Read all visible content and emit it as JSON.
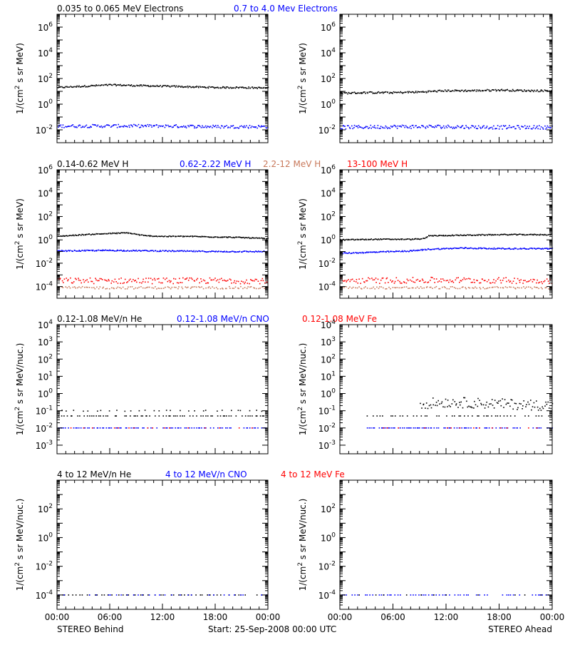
{
  "footer": {
    "left": "STEREO Behind",
    "center": "Start: 25-Sep-2008 00:00 UTC",
    "right": "STEREO Ahead"
  },
  "time_ticks": [
    "00:00",
    "06:00",
    "12:00",
    "18:00",
    "00:00"
  ],
  "chart_data": [
    {
      "type": "scatter",
      "row": "electrons",
      "legend": [
        {
          "label": "0.035 to 0.065 MeV Electrons",
          "color": "#000000"
        },
        {
          "label": "0.7 to 4.0 Mev Electrons",
          "color": "#0000ff"
        }
      ],
      "ylabel_base": "1/(cm",
      "ylabel_sup": "2",
      "ylabel_rest": " s sr MeV)",
      "y_log": true,
      "ylim_exp": [
        -3,
        7
      ],
      "y_ticks": [
        {
          "exp": -2,
          "base": "10",
          "sup": "-2"
        },
        {
          "exp": 0,
          "base": "10",
          "sup": "0"
        },
        {
          "exp": 2,
          "base": "10",
          "sup": "2"
        },
        {
          "exp": 4,
          "base": "10",
          "sup": "4"
        },
        {
          "exp": 6,
          "base": "10",
          "sup": "6"
        }
      ],
      "x_hours": [
        0,
        24
      ],
      "behind": [
        {
          "color": "#000000",
          "x_hours": [
            0,
            3,
            6,
            9,
            12,
            15,
            18,
            21,
            24
          ],
          "log10_values": [
            1.3,
            1.4,
            1.5,
            1.45,
            1.4,
            1.35,
            1.3,
            1.3,
            1.25
          ],
          "scatter": 0.06,
          "density": 220
        },
        {
          "color": "#0000ff",
          "x_hours": [
            0,
            6,
            12,
            18,
            24
          ],
          "log10_values": [
            -1.7,
            -1.7,
            -1.7,
            -1.75,
            -1.75
          ],
          "scatter": 0.12,
          "density": 200
        }
      ],
      "ahead": [
        {
          "color": "#000000",
          "x_hours": [
            0,
            3,
            6,
            9,
            12,
            15,
            18,
            21,
            24
          ],
          "log10_values": [
            0.85,
            0.9,
            0.9,
            0.95,
            1.05,
            1.05,
            1.1,
            1.05,
            1.05
          ],
          "scatter": 0.07,
          "density": 220
        },
        {
          "color": "#0000ff",
          "x_hours": [
            0,
            6,
            12,
            18,
            24
          ],
          "log10_values": [
            -1.8,
            -1.75,
            -1.75,
            -1.8,
            -1.8
          ],
          "scatter": 0.14,
          "density": 200
        }
      ]
    },
    {
      "type": "scatter",
      "row": "protons",
      "legend": [
        {
          "label": "0.14-0.62 MeV H",
          "color": "#000000"
        },
        {
          "label": "0.62-2.22 MeV H",
          "color": "#0000ff"
        },
        {
          "label": "2.2-12 MeV H",
          "color": "#c8785a"
        },
        {
          "label": "13-100 MeV H",
          "color": "#ff0000"
        }
      ],
      "ylabel_base": "1/(cm",
      "ylabel_sup": "2",
      "ylabel_rest": " s sr MeV)",
      "y_log": true,
      "ylim_exp": [
        -5,
        6
      ],
      "y_ticks": [
        {
          "exp": -4,
          "base": "10",
          "sup": "-4"
        },
        {
          "exp": -2,
          "base": "10",
          "sup": "-2"
        },
        {
          "exp": 0,
          "base": "10",
          "sup": "0"
        },
        {
          "exp": 2,
          "base": "10",
          "sup": "2"
        },
        {
          "exp": 4,
          "base": "10",
          "sup": "4"
        },
        {
          "exp": 6,
          "base": "10",
          "sup": "6"
        }
      ],
      "x_hours": [
        0,
        24
      ],
      "behind": [
        {
          "color": "#000000",
          "x_hours": [
            0,
            3,
            6,
            8,
            10,
            12,
            15,
            18,
            21,
            24
          ],
          "log10_values": [
            0.3,
            0.45,
            0.55,
            0.6,
            0.35,
            0.3,
            0.3,
            0.25,
            0.2,
            0.1
          ],
          "scatter": 0.04,
          "density": 220
        },
        {
          "color": "#0000ff",
          "x_hours": [
            0,
            6,
            12,
            18,
            24
          ],
          "log10_values": [
            -0.95,
            -0.9,
            -0.95,
            -1.0,
            -1.0
          ],
          "scatter": 0.05,
          "density": 220
        },
        {
          "color": "#ff0000",
          "x_hours": [
            0,
            12,
            24
          ],
          "log10_values": [
            -3.5,
            -3.5,
            -3.5
          ],
          "scatter": 0.25,
          "density": 160
        },
        {
          "color": "#c8785a",
          "x_hours": [
            0,
            12,
            24
          ],
          "log10_values": [
            -4.1,
            -4.1,
            -4.1
          ],
          "scatter": 0.1,
          "density": 120
        }
      ],
      "ahead": [
        {
          "color": "#000000",
          "x_hours": [
            0,
            4,
            8,
            9.5,
            10,
            14,
            18,
            24
          ],
          "log10_values": [
            0.0,
            0.05,
            0.05,
            0.1,
            0.35,
            0.4,
            0.45,
            0.45
          ],
          "scatter": 0.04,
          "density": 220
        },
        {
          "color": "#0000ff",
          "x_hours": [
            0,
            4,
            8,
            10,
            14,
            18,
            24
          ],
          "log10_values": [
            -1.15,
            -1.05,
            -0.95,
            -0.8,
            -0.7,
            -0.75,
            -0.75
          ],
          "scatter": 0.05,
          "density": 220
        },
        {
          "color": "#ff0000",
          "x_hours": [
            0,
            12,
            24
          ],
          "log10_values": [
            -3.5,
            -3.45,
            -3.5
          ],
          "scatter": 0.25,
          "density": 160
        },
        {
          "color": "#c8785a",
          "x_hours": [
            0,
            12,
            24
          ],
          "log10_values": [
            -4.1,
            -4.1,
            -4.1
          ],
          "scatter": 0.1,
          "density": 120
        }
      ]
    },
    {
      "type": "scatter",
      "row": "low-energy-ions",
      "legend": [
        {
          "label": "0.12-1.08 MeV/n He",
          "color": "#000000"
        },
        {
          "label": "0.12-1.08 MeV/n CNO",
          "color": "#0000ff"
        },
        {
          "label": "0.12-1.08 MeV Fe",
          "color": "#ff0000"
        }
      ],
      "ylabel_base": "1/(cm",
      "ylabel_sup": "2",
      "ylabel_rest": " s sr MeV/nuc.)",
      "y_log": true,
      "ylim_exp": [
        -3.5,
        4
      ],
      "y_ticks": [
        {
          "exp": -3,
          "base": "10",
          "sup": "-3"
        },
        {
          "exp": -2,
          "base": "10",
          "sup": "-2"
        },
        {
          "exp": -1,
          "base": "10",
          "sup": "-1"
        },
        {
          "exp": 0,
          "base": "10",
          "sup": "0"
        },
        {
          "exp": 1,
          "base": "10",
          "sup": "1"
        },
        {
          "exp": 2,
          "base": "10",
          "sup": "2"
        },
        {
          "exp": 3,
          "base": "10",
          "sup": "3"
        },
        {
          "exp": 4,
          "base": "10",
          "sup": "4"
        }
      ],
      "x_hours": [
        0,
        24
      ],
      "behind": [
        {
          "color": "#000000",
          "x_hours": [
            0,
            24
          ],
          "log10_values": [
            -1.3,
            -1.3
          ],
          "scatter": 0.0,
          "density": 90
        },
        {
          "color": "#000000",
          "x_hours": [
            0,
            24
          ],
          "log10_values": [
            -1.0,
            -1.0
          ],
          "scatter": 0.03,
          "density": 30
        },
        {
          "color": "#0000ff",
          "x_hours": [
            0,
            24
          ],
          "log10_values": [
            -2.0,
            -2.0
          ],
          "scatter": 0.0,
          "density": 110
        },
        {
          "color": "#ff0000",
          "x_hours": [
            0,
            24
          ],
          "log10_values": [
            -2.0,
            -2.0
          ],
          "scatter": 0.0,
          "density": 25
        }
      ],
      "ahead": [
        {
          "color": "#000000",
          "x_hours": [
            3,
            9,
            24
          ],
          "log10_values": [
            -1.3,
            -1.3,
            -1.3
          ],
          "scatter": 0.0,
          "density": 60
        },
        {
          "color": "#000000",
          "x_hours": [
            9,
            12,
            18,
            24
          ],
          "log10_values": [
            -0.6,
            -0.5,
            -0.6,
            -0.7
          ],
          "scatter": 0.3,
          "density": 110
        },
        {
          "color": "#0000ff",
          "x_hours": [
            3,
            24
          ],
          "log10_values": [
            -2.0,
            -2.0
          ],
          "scatter": 0.0,
          "density": 110
        },
        {
          "color": "#ff0000",
          "x_hours": [
            3,
            24
          ],
          "log10_values": [
            -2.0,
            -2.0
          ],
          "scatter": 0.0,
          "density": 20
        }
      ]
    },
    {
      "type": "scatter",
      "row": "high-energy-ions",
      "legend": [
        {
          "label": "4 to 12 MeV/n He",
          "color": "#000000"
        },
        {
          "label": "4 to 12 MeV/n CNO",
          "color": "#0000ff"
        },
        {
          "label": "4 to 12 MeV Fe",
          "color": "#ff0000"
        }
      ],
      "ylabel_base": "1/(cm",
      "ylabel_sup": "2",
      "ylabel_rest": " s sr MeV/nuc.)",
      "y_log": true,
      "ylim_exp": [
        -5,
        4
      ],
      "y_ticks": [
        {
          "exp": -4,
          "base": "10",
          "sup": "-4"
        },
        {
          "exp": -2,
          "base": "10",
          "sup": "-2"
        },
        {
          "exp": 0,
          "base": "10",
          "sup": "0"
        },
        {
          "exp": 2,
          "base": "10",
          "sup": "2"
        }
      ],
      "x_hours": [
        0,
        24
      ],
      "behind": [
        {
          "color": "#000000",
          "x_hours": [
            0,
            24
          ],
          "log10_values": [
            -4.0,
            -4.0
          ],
          "scatter": 0.0,
          "density": 60
        },
        {
          "color": "#0000ff",
          "x_hours": [
            0,
            24
          ],
          "log10_values": [
            -4.0,
            -4.0
          ],
          "scatter": 0.0,
          "density": 40
        }
      ],
      "ahead": [
        {
          "color": "#0000ff",
          "x_hours": [
            0,
            24
          ],
          "log10_values": [
            -4.0,
            -4.0
          ],
          "scatter": 0.0,
          "density": 80
        },
        {
          "color": "#000000",
          "x_hours": [
            0,
            24
          ],
          "log10_values": [
            -4.0,
            -4.0
          ],
          "scatter": 0.0,
          "density": 15
        }
      ]
    }
  ]
}
